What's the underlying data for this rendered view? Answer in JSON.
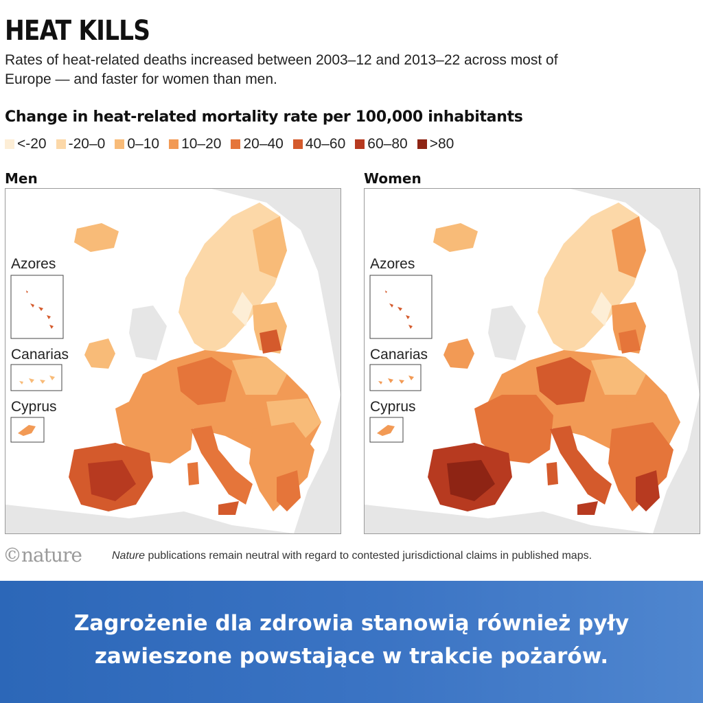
{
  "header": {
    "title": "HEAT KILLS",
    "subtitle": "Rates of heat-related deaths increased between 2003–12 and 2013–22 across most of Europe — and faster for women than men."
  },
  "legend": {
    "title": "Change in heat-related mortality rate per 100,000 inhabitants",
    "items": [
      {
        "label": "<-20",
        "color": "#fdeed6"
      },
      {
        "label": "-20–0",
        "color": "#fcd8a8"
      },
      {
        "label": "0–10",
        "color": "#f8bb78"
      },
      {
        "label": "10–20",
        "color": "#f29a55"
      },
      {
        "label": "20–40",
        "color": "#e5753a"
      },
      {
        "label": "40–60",
        "color": "#d45a2c"
      },
      {
        "label": "60–80",
        "color": "#b73a20"
      },
      {
        "label": ">80",
        "color": "#8e2414"
      }
    ]
  },
  "maps": [
    {
      "label": "Men",
      "insets": [
        "Azores",
        "Canarias",
        "Cyprus"
      ]
    },
    {
      "label": "Women",
      "insets": [
        "Azores",
        "Canarias",
        "Cyprus"
      ]
    }
  ],
  "footer": {
    "logo": "©nature",
    "note_italic": "Nature",
    "note_rest": " publications remain neutral with regard to contested jurisdictional claims in published maps."
  },
  "banner": {
    "line1": "Zagrożenie dla zdrowia stanowią również pyły",
    "line2": "zawieszone powstające w trakcie pożarów."
  }
}
